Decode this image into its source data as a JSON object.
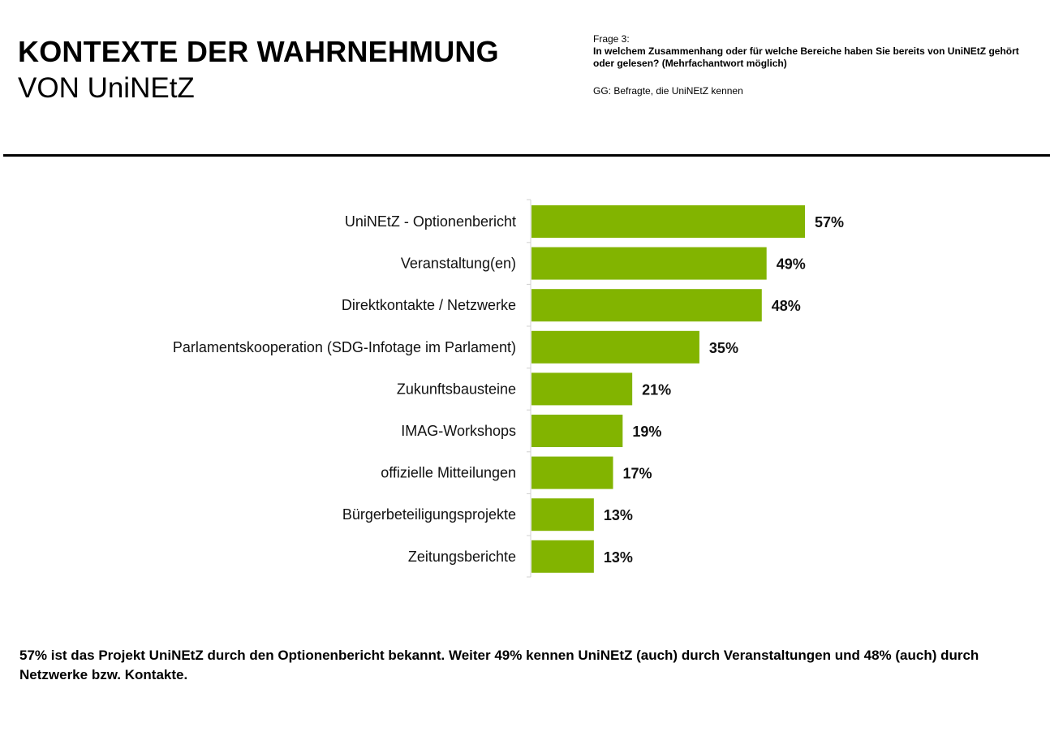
{
  "header": {
    "title": "KONTEXTE DER WAHRNEHMUNG",
    "subtitle": "VON UniNEtZ",
    "question_label": "Frage 3:",
    "question_text": "In welchem Zusammenhang oder für welche Bereiche haben Sie bereits von UniNEtZ gehört oder gelesen?  (Mehrfachantwort möglich)",
    "base": "GG: Befragte, die UniNEtZ kennen"
  },
  "chart_data": {
    "type": "bar",
    "orientation": "horizontal",
    "categories": [
      "UniNEtZ - Optionenbericht",
      "Veranstaltung(en)",
      "Direktkontakte / Netzwerke",
      "Parlamentskooperation (SDG-Infotage im Parlament)",
      "Zukunftsbausteine",
      "IMAG-Workshops",
      "offizielle Mitteilungen",
      "Bürgerbeteiligungsprojekte",
      "Zeitungsberichte"
    ],
    "values": [
      57,
      49,
      48,
      35,
      21,
      19,
      17,
      13,
      13
    ],
    "value_labels": [
      "57%",
      "49%",
      "48%",
      "35%",
      "21%",
      "19%",
      "17%",
      "13%",
      "13%"
    ],
    "unit": "%",
    "xlim": [
      0,
      100
    ],
    "bar_color": "#82b400",
    "title": "",
    "xlabel": "",
    "ylabel": "",
    "grid": false
  },
  "summary": "57% ist das Projekt UniNEtZ durch den Optionenbericht bekannt. Weiter 49% kennen UniNEtZ (auch) durch Veranstaltungen und 48% (auch) durch Netzwerke bzw. Kontakte."
}
